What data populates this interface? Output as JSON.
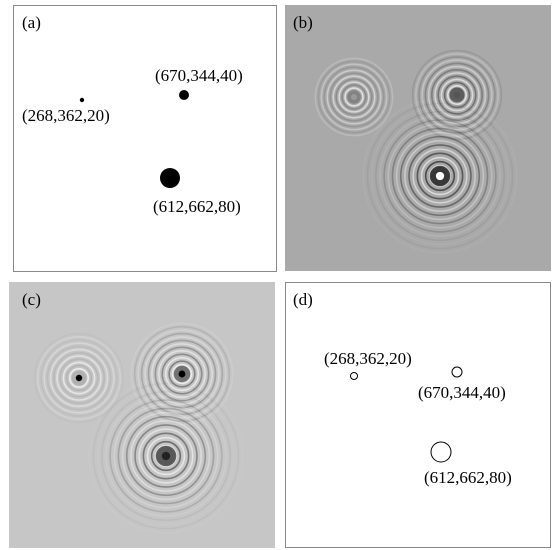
{
  "panels": [
    {
      "label": "(a)",
      "points": [
        "(268,362,20)",
        "(670,344,40)",
        "(612,662,80)"
      ]
    },
    {
      "label": "(b)"
    },
    {
      "label": "(c)"
    },
    {
      "label": "(d)",
      "points": [
        "(268,362,20)",
        "(670,344,40)",
        "(612,662,80)"
      ]
    }
  ]
}
